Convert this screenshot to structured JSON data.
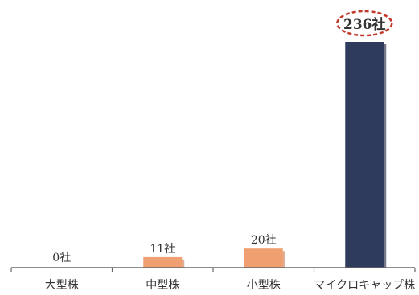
{
  "chart_data": {
    "type": "bar",
    "categories": [
      "大型株",
      "中型株",
      "小型株",
      "マイクロキャップ株"
    ],
    "values": [
      0,
      11,
      20,
      236
    ],
    "data_labels": [
      "0社",
      "11社",
      "20社",
      "236社"
    ],
    "highlight_index": 3,
    "ylim": [
      0,
      236
    ],
    "grid": false,
    "legend": "none",
    "colors": {
      "default_bar": "#f0a070",
      "highlight_bar": "#2f3b5c",
      "highlight_outline": "#c0392b",
      "axis": "#666666",
      "text": "#333333"
    }
  }
}
